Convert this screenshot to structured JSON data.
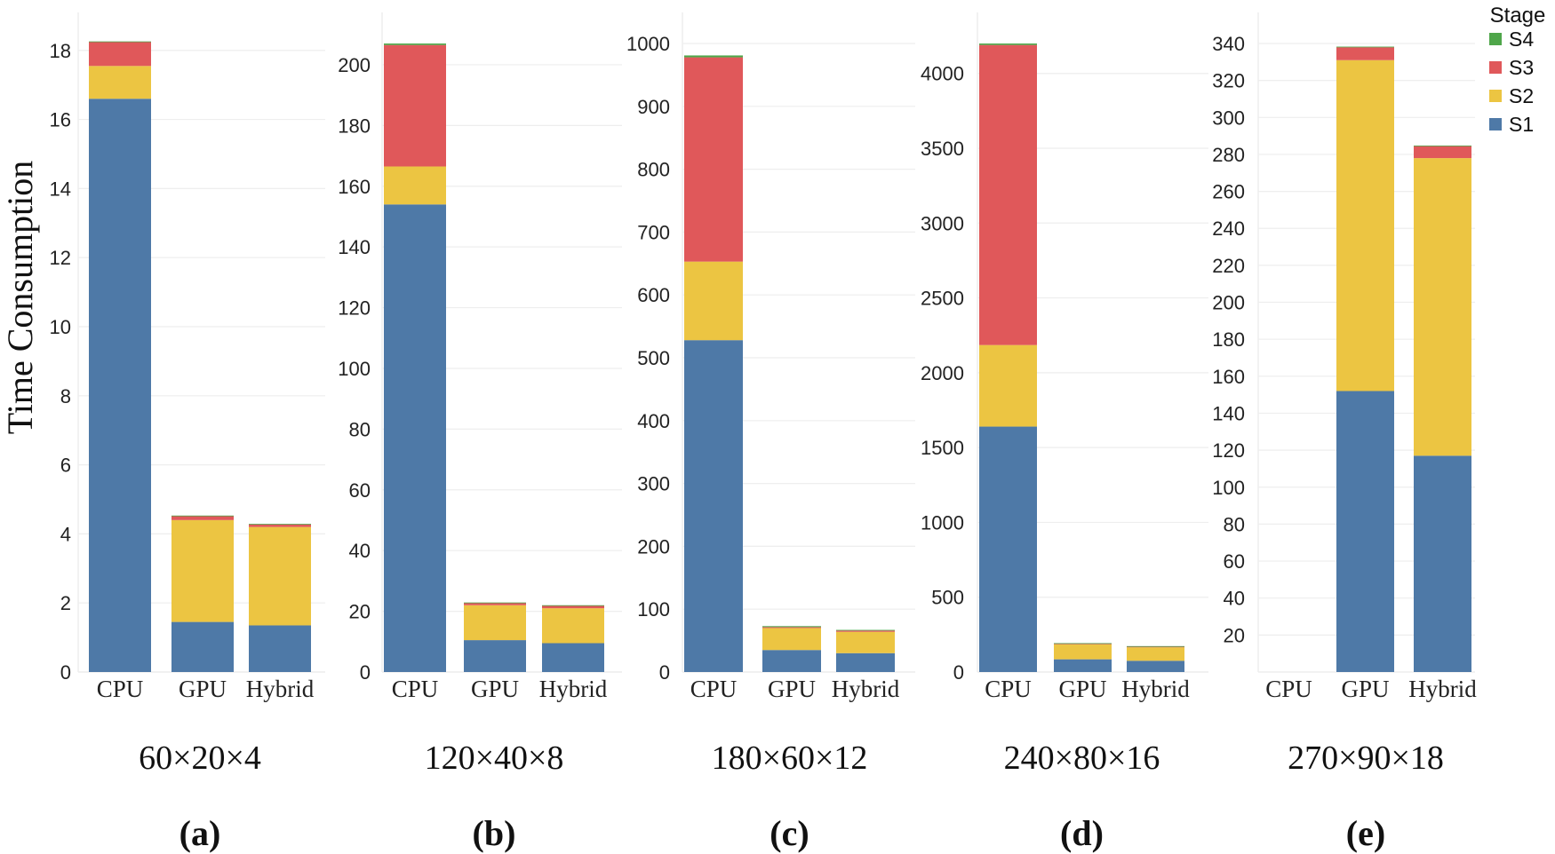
{
  "ylabel": "Time Consumption",
  "legend": {
    "title": "Stage",
    "entries": [
      {
        "name": "S4",
        "color": "#4fa64a"
      },
      {
        "name": "S3",
        "color": "#e0585a"
      },
      {
        "name": "S2",
        "color": "#ecc542"
      },
      {
        "name": "S1",
        "color": "#4e79a7"
      }
    ]
  },
  "chart_data": [
    {
      "type": "bar",
      "stacked": true,
      "panel_label": "(a)",
      "size_label": "60×20×4",
      "categories": [
        "CPU",
        "GPU",
        "Hybrid"
      ],
      "ylim": [
        0,
        18.2
      ],
      "yticks": [
        0,
        2,
        4,
        6,
        8,
        10,
        12,
        14,
        16,
        18
      ],
      "series": [
        {
          "name": "S1",
          "values": [
            16.6,
            1.45,
            1.35
          ]
        },
        {
          "name": "S2",
          "values": [
            0.95,
            2.95,
            2.85
          ]
        },
        {
          "name": "S3",
          "values": [
            0.7,
            0.12,
            0.08
          ]
        },
        {
          "name": "S4",
          "values": [
            0.01,
            0.01,
            0.01
          ]
        }
      ]
    },
    {
      "type": "bar",
      "stacked": true,
      "panel_label": "(b)",
      "size_label": "120×40×8",
      "categories": [
        "CPU",
        "GPU",
        "Hybrid"
      ],
      "ylim": [
        0,
        207
      ],
      "yticks": [
        0,
        20,
        40,
        60,
        80,
        100,
        120,
        140,
        160,
        180,
        200
      ],
      "series": [
        {
          "name": "S1",
          "values": [
            154,
            10.5,
            9.5
          ]
        },
        {
          "name": "S2",
          "values": [
            12.5,
            11.5,
            11.5
          ]
        },
        {
          "name": "S3",
          "values": [
            40,
            0.7,
            0.8
          ]
        },
        {
          "name": "S4",
          "values": [
            0.5,
            0.2,
            0.2
          ]
        }
      ]
    },
    {
      "type": "bar",
      "stacked": true,
      "panel_label": "(c)",
      "size_label": "180×60×12",
      "categories": [
        "CPU",
        "GPU",
        "Hybrid"
      ],
      "ylim": [
        0,
        1000
      ],
      "yticks": [
        0,
        100,
        200,
        300,
        400,
        500,
        600,
        700,
        800,
        900,
        1000
      ],
      "series": [
        {
          "name": "S1",
          "values": [
            528,
            35,
            30
          ]
        },
        {
          "name": "S2",
          "values": [
            125,
            35,
            34
          ]
        },
        {
          "name": "S3",
          "values": [
            325,
            1.5,
            2
          ]
        },
        {
          "name": "S4",
          "values": [
            3,
            1.5,
            1
          ]
        }
      ]
    },
    {
      "type": "bar",
      "stacked": true,
      "panel_label": "(d)",
      "size_label": "240×80×16",
      "categories": [
        "CPU",
        "GPU",
        "Hybrid"
      ],
      "ylim": [
        0,
        4200
      ],
      "yticks": [
        0,
        500,
        1000,
        1500,
        2000,
        2500,
        3000,
        3500,
        4000
      ],
      "series": [
        {
          "name": "S1",
          "values": [
            1640,
            85,
            75
          ]
        },
        {
          "name": "S2",
          "values": [
            545,
            100,
            90
          ]
        },
        {
          "name": "S3",
          "values": [
            2005,
            5,
            5
          ]
        },
        {
          "name": "S4",
          "values": [
            10,
            3,
            3
          ]
        }
      ]
    },
    {
      "type": "bar",
      "stacked": true,
      "panel_label": "(e)",
      "size_label": "270×90×18",
      "categories": [
        "CPU",
        "GPU",
        "Hybrid"
      ],
      "ylim": [
        0,
        340
      ],
      "yticks": [
        20,
        40,
        60,
        80,
        100,
        120,
        140,
        160,
        180,
        200,
        220,
        240,
        260,
        280,
        300,
        320,
        340
      ],
      "series": [
        {
          "name": "S1",
          "values": [
            0,
            152,
            117
          ]
        },
        {
          "name": "S2",
          "values": [
            0,
            179,
            161
          ]
        },
        {
          "name": "S3",
          "values": [
            0,
            7,
            6.5
          ]
        },
        {
          "name": "S4",
          "values": [
            0,
            0.3,
            0.3
          ]
        }
      ]
    }
  ]
}
